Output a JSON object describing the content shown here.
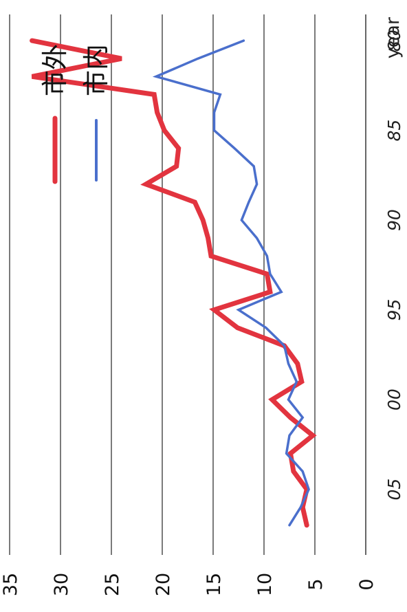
{
  "chart_data": {
    "type": "line",
    "xlabel": "year",
    "ylabel": "",
    "x_tick_labels": [
      "80",
      "85",
      "90",
      "95",
      "00",
      "05"
    ],
    "x_ticks": [
      1980,
      1985,
      1990,
      1995,
      2000,
      2005
    ],
    "xlim": [
      1979,
      2008.5
    ],
    "y_tick_labels": [
      "0",
      "5",
      "10",
      "15",
      "20",
      "25",
      "30",
      "35"
    ],
    "y_ticks": [
      0,
      5,
      10,
      15,
      20,
      25,
      30,
      35
    ],
    "ylim": [
      0,
      35
    ],
    "grid": true,
    "legend_position": "top-right",
    "series": [
      {
        "name": "市外",
        "color": "#e2343f",
        "x": [
          1980,
          1981,
          1982,
          1983,
          1984,
          1985,
          1986,
          1987,
          1988,
          1989,
          1990,
          1991,
          1992,
          1993,
          1994,
          1995,
          1996,
          1997,
          1998,
          1999,
          2000,
          2001,
          2002,
          2003,
          2004,
          2005,
          2006,
          2007
        ],
        "values": [
          32.8,
          24.0,
          32.8,
          20.8,
          20.5,
          19.8,
          18.4,
          18.6,
          21.6,
          16.8,
          16.0,
          15.5,
          15.2,
          9.7,
          9.4,
          14.9,
          12.6,
          8.0,
          6.7,
          6.3,
          9.2,
          7.4,
          5.2,
          7.4,
          7.1,
          5.8,
          6.2,
          5.8
        ]
      },
      {
        "name": "市内",
        "color": "#4a6fcc",
        "x": [
          1980,
          1981,
          1982,
          1983,
          1984,
          1985,
          1986,
          1987,
          1988,
          1989,
          1990,
          1991,
          1992,
          1993,
          1994,
          1995,
          1996,
          1997,
          1998,
          1999,
          2000,
          2001,
          2002,
          2003,
          2004,
          2005,
          2006,
          2007
        ],
        "values": [
          12.0,
          16.5,
          20.6,
          14.3,
          14.9,
          14.9,
          12.9,
          11.0,
          10.7,
          11.5,
          12.2,
          10.7,
          9.7,
          9.4,
          8.3,
          12.5,
          9.8,
          8.0,
          7.6,
          6.8,
          7.6,
          6.2,
          7.5,
          7.8,
          6.2,
          5.6,
          6.4,
          7.5
        ]
      }
    ]
  }
}
